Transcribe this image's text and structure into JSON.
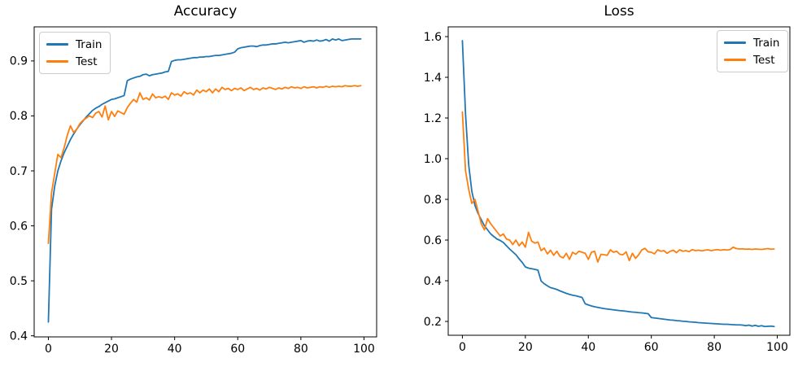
{
  "figure": {
    "background": "#ffffff",
    "axis_color": "#000000",
    "train_color": "#1f77b4",
    "test_color": "#ff7f0e"
  },
  "chart_data": [
    {
      "type": "line",
      "title": "Accuracy",
      "xlabel": "",
      "ylabel": "",
      "grid": false,
      "legend_position": "upper left",
      "xlim": [
        -4.5,
        104
      ],
      "ylim": [
        0.398,
        0.962
      ],
      "x_start": 0,
      "x_step": 1,
      "n_points": 100,
      "xticks": {
        "values": [
          0,
          20,
          40,
          60,
          80,
          100
        ],
        "labels": [
          "0",
          "20",
          "40",
          "60",
          "80",
          "100"
        ]
      },
      "yticks": {
        "values": [
          0.4,
          0.5,
          0.6,
          0.7,
          0.8,
          0.9
        ],
        "labels": [
          "0.4",
          "0.5",
          "0.6",
          "0.7",
          "0.8",
          "0.9"
        ]
      },
      "series": [
        {
          "name": "Train",
          "color": "#1f77b4",
          "values": [
            0.425,
            0.63,
            0.672,
            0.7,
            0.718,
            0.733,
            0.745,
            0.757,
            0.767,
            0.776,
            0.784,
            0.791,
            0.798,
            0.804,
            0.81,
            0.814,
            0.817,
            0.821,
            0.824,
            0.827,
            0.83,
            0.831,
            0.833,
            0.835,
            0.837,
            0.864,
            0.867,
            0.869,
            0.871,
            0.872,
            0.875,
            0.876,
            0.873,
            0.875,
            0.876,
            0.877,
            0.878,
            0.88,
            0.881,
            0.899,
            0.901,
            0.902,
            0.902,
            0.903,
            0.904,
            0.905,
            0.906,
            0.906,
            0.907,
            0.907,
            0.908,
            0.908,
            0.909,
            0.91,
            0.91,
            0.911,
            0.912,
            0.913,
            0.914,
            0.916,
            0.922,
            0.924,
            0.925,
            0.926,
            0.927,
            0.927,
            0.926,
            0.928,
            0.929,
            0.929,
            0.93,
            0.931,
            0.931,
            0.932,
            0.933,
            0.934,
            0.933,
            0.934,
            0.935,
            0.936,
            0.937,
            0.934,
            0.936,
            0.937,
            0.936,
            0.938,
            0.936,
            0.937,
            0.939,
            0.936,
            0.94,
            0.938,
            0.94,
            0.937,
            0.938,
            0.939,
            0.94,
            0.94,
            0.94,
            0.94
          ]
        },
        {
          "name": "Test",
          "color": "#ff7f0e",
          "values": [
            0.568,
            0.66,
            0.695,
            0.73,
            0.724,
            0.742,
            0.765,
            0.782,
            0.77,
            0.776,
            0.786,
            0.792,
            0.796,
            0.8,
            0.797,
            0.805,
            0.808,
            0.798,
            0.818,
            0.793,
            0.808,
            0.799,
            0.809,
            0.806,
            0.803,
            0.815,
            0.823,
            0.83,
            0.825,
            0.842,
            0.83,
            0.833,
            0.829,
            0.84,
            0.833,
            0.835,
            0.833,
            0.836,
            0.83,
            0.842,
            0.838,
            0.84,
            0.836,
            0.844,
            0.84,
            0.842,
            0.838,
            0.847,
            0.842,
            0.847,
            0.844,
            0.849,
            0.842,
            0.849,
            0.844,
            0.852,
            0.848,
            0.85,
            0.846,
            0.85,
            0.848,
            0.851,
            0.846,
            0.849,
            0.852,
            0.848,
            0.85,
            0.847,
            0.851,
            0.849,
            0.852,
            0.85,
            0.848,
            0.851,
            0.849,
            0.852,
            0.85,
            0.853,
            0.851,
            0.852,
            0.85,
            0.853,
            0.851,
            0.852,
            0.853,
            0.851,
            0.853,
            0.852,
            0.854,
            0.852,
            0.854,
            0.853,
            0.854,
            0.853,
            0.855,
            0.854,
            0.854,
            0.855,
            0.854,
            0.855
          ]
        }
      ]
    },
    {
      "type": "line",
      "title": "Loss",
      "xlabel": "",
      "ylabel": "",
      "grid": false,
      "legend_position": "upper right",
      "xlim": [
        -4.5,
        104
      ],
      "ylim": [
        0.132,
        1.648
      ],
      "x_start": 0,
      "x_step": 1,
      "n_points": 100,
      "xticks": {
        "values": [
          0,
          20,
          40,
          60,
          80,
          100
        ],
        "labels": [
          "0",
          "20",
          "40",
          "60",
          "80",
          "100"
        ]
      },
      "yticks": {
        "values": [
          0.2,
          0.4,
          0.6,
          0.8,
          1.0,
          1.2,
          1.4,
          1.6
        ],
        "labels": [
          "0.2",
          "0.4",
          "0.6",
          "0.8",
          "1.0",
          "1.2",
          "1.4",
          "1.6"
        ]
      },
      "series": [
        {
          "name": "Train",
          "color": "#1f77b4",
          "values": [
            1.58,
            1.22,
            0.97,
            0.84,
            0.77,
            0.73,
            0.7,
            0.67,
            0.65,
            0.63,
            0.617,
            0.605,
            0.598,
            0.588,
            0.572,
            0.556,
            0.542,
            0.528,
            0.508,
            0.49,
            0.468,
            0.462,
            0.459,
            0.456,
            0.452,
            0.399,
            0.385,
            0.375,
            0.366,
            0.362,
            0.357,
            0.35,
            0.344,
            0.338,
            0.333,
            0.329,
            0.326,
            0.322,
            0.318,
            0.287,
            0.281,
            0.276,
            0.272,
            0.269,
            0.266,
            0.263,
            0.261,
            0.259,
            0.257,
            0.255,
            0.253,
            0.252,
            0.25,
            0.248,
            0.246,
            0.245,
            0.243,
            0.242,
            0.24,
            0.238,
            0.219,
            0.217,
            0.215,
            0.213,
            0.211,
            0.209,
            0.207,
            0.206,
            0.204,
            0.203,
            0.201,
            0.2,
            0.198,
            0.197,
            0.196,
            0.194,
            0.193,
            0.192,
            0.191,
            0.19,
            0.189,
            0.188,
            0.187,
            0.186,
            0.186,
            0.185,
            0.184,
            0.183,
            0.183,
            0.182,
            0.179,
            0.182,
            0.177,
            0.181,
            0.176,
            0.179,
            0.175,
            0.176,
            0.177,
            0.175
          ]
        },
        {
          "name": "Test",
          "color": "#ff7f0e",
          "values": [
            1.23,
            0.94,
            0.85,
            0.78,
            0.8,
            0.74,
            0.68,
            0.65,
            0.705,
            0.68,
            0.66,
            0.64,
            0.62,
            0.63,
            0.605,
            0.6,
            0.578,
            0.6,
            0.572,
            0.59,
            0.565,
            0.638,
            0.595,
            0.585,
            0.59,
            0.548,
            0.56,
            0.532,
            0.55,
            0.525,
            0.545,
            0.52,
            0.512,
            0.535,
            0.505,
            0.54,
            0.53,
            0.545,
            0.54,
            0.535,
            0.505,
            0.54,
            0.545,
            0.492,
            0.53,
            0.528,
            0.525,
            0.552,
            0.54,
            0.545,
            0.53,
            0.528,
            0.542,
            0.499,
            0.535,
            0.51,
            0.528,
            0.552,
            0.559,
            0.542,
            0.54,
            0.532,
            0.552,
            0.545,
            0.548,
            0.535,
            0.545,
            0.55,
            0.538,
            0.552,
            0.545,
            0.548,
            0.543,
            0.553,
            0.548,
            0.55,
            0.547,
            0.55,
            0.552,
            0.548,
            0.551,
            0.553,
            0.55,
            0.553,
            0.551,
            0.553,
            0.565,
            0.558,
            0.556,
            0.557,
            0.555,
            0.556,
            0.554,
            0.556,
            0.555,
            0.554,
            0.556,
            0.558,
            0.555,
            0.556
          ]
        }
      ]
    }
  ]
}
